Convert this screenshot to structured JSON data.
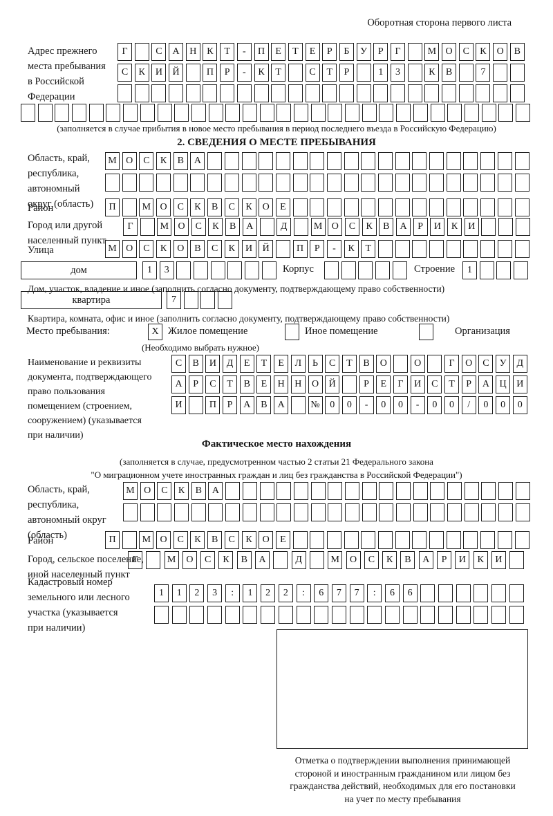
{
  "page": {
    "corner_note": "Оборотная сторона первого листа"
  },
  "prev_address": {
    "label": "Адрес прежнего\nместа пребывания\nв Российской\nФедерации",
    "row1": [
      "Г",
      "",
      "С",
      "А",
      "Н",
      "К",
      "Т",
      "-",
      "П",
      "Е",
      "Т",
      "Е",
      "Р",
      "Б",
      "У",
      "Р",
      "Г",
      "",
      "М",
      "О",
      "С",
      "К",
      "О",
      "В"
    ],
    "row2": [
      "С",
      "К",
      "И",
      "Й",
      "",
      "П",
      "Р",
      "-",
      "К",
      "Т",
      "",
      "С",
      "Т",
      "Р",
      "",
      "1",
      "3",
      "",
      "К",
      "В",
      "",
      "7",
      "",
      ""
    ],
    "row3": [
      "",
      "",
      "",
      "",
      "",
      "",
      "",
      "",
      "",
      "",
      "",
      "",
      "",
      "",
      "",
      "",
      "",
      "",
      "",
      "",
      "",
      "",
      "",
      ""
    ],
    "row4": [
      "",
      "",
      "",
      "",
      "",
      "",
      "",
      "",
      "",
      "",
      "",
      "",
      "",
      "",
      "",
      "",
      "",
      "",
      "",
      "",
      "",
      "",
      "",
      "",
      "",
      "",
      "",
      "",
      "",
      ""
    ],
    "note": "(заполняется в случае прибытия в новое место пребывания в период последнего въезда в Российскую Федерацию)"
  },
  "section2": {
    "heading": "2. СВЕДЕНИЯ О МЕСТЕ ПРЕБЫВАНИЯ",
    "oblast": {
      "label": "Область, край,\nреспублика,\nавтономный\nокруг (область)",
      "row1": [
        "М",
        "О",
        "С",
        "К",
        "В",
        "А",
        "",
        "",
        "",
        "",
        "",
        "",
        "",
        "",
        "",
        "",
        "",
        "",
        "",
        "",
        "",
        "",
        "",
        "",
        ""
      ],
      "row2": [
        "",
        "",
        "",
        "",
        "",
        "",
        "",
        "",
        "",
        "",
        "",
        "",
        "",
        "",
        "",
        "",
        "",
        "",
        "",
        "",
        "",
        "",
        "",
        "",
        ""
      ]
    },
    "raion": {
      "label": "Район",
      "row": [
        "П",
        "",
        "М",
        "О",
        "С",
        "К",
        "В",
        "С",
        "К",
        "О",
        "Е",
        "",
        "",
        "",
        "",
        "",
        "",
        "",
        "",
        "",
        "",
        "",
        "",
        "",
        ""
      ]
    },
    "gorod": {
      "label": "Город или другой\nнаселенный пункт",
      "row": [
        "Г",
        "",
        "М",
        "О",
        "С",
        "К",
        "В",
        "А",
        "",
        "Д",
        "",
        "М",
        "О",
        "С",
        "К",
        "В",
        "А",
        "Р",
        "И",
        "К",
        "И",
        "",
        "",
        ""
      ]
    },
    "ulitsa": {
      "label": "Улица",
      "row": [
        "М",
        "О",
        "С",
        "К",
        "О",
        "В",
        "С",
        "К",
        "И",
        "Й",
        "",
        "П",
        "Р",
        "-",
        "К",
        "Т",
        "",
        "",
        "",
        "",
        "",
        "",
        "",
        "",
        ""
      ]
    },
    "dom": {
      "field_label": "дом",
      "cells": [
        "1",
        "3",
        "",
        "",
        "",
        "",
        "",
        ""
      ],
      "korpus_label": "Корпус",
      "korpus_cells": [
        "",
        "",
        "",
        "",
        ""
      ],
      "stroenie_label": "Строение",
      "stroenie_cells": [
        "1",
        "",
        "",
        ""
      ],
      "note": "Дом, участок, владение и иное (заполнить согласно документу, подтверждающему право собственности)"
    },
    "kvartira": {
      "field_label": "квартира",
      "cells": [
        "7",
        "",
        "",
        ""
      ],
      "note": "Квартира, комната, офис и иное (заполнить согласно документу, подтверждающему право собственности)"
    },
    "mesto": {
      "label": "Место пребывания:",
      "mark": "X",
      "options": [
        "Жилое помещение",
        "Иное помещение",
        "Организация"
      ],
      "note": "(Необходимо выбрать нужное)"
    },
    "document": {
      "label": "Наименование и реквизиты\nдокумента, подтверждающего\nправо пользования\nпомещением (строением,\nсооружением) (указывается\nпри наличии)",
      "row1": [
        "С",
        "В",
        "И",
        "Д",
        "Е",
        "Т",
        "Е",
        "Л",
        "Ь",
        "С",
        "Т",
        "В",
        "О",
        "",
        "О",
        "",
        "Г",
        "О",
        "С",
        "У",
        "Д"
      ],
      "row2": [
        "А",
        "Р",
        "С",
        "Т",
        "В",
        "Е",
        "Н",
        "Н",
        "О",
        "Й",
        "",
        "Р",
        "Е",
        "Г",
        "И",
        "С",
        "Т",
        "Р",
        "А",
        "Ц",
        "И"
      ],
      "row3": [
        "И",
        "",
        "П",
        "Р",
        "А",
        "В",
        "А",
        "",
        "№",
        "0",
        "0",
        "-",
        "0",
        "0",
        "-",
        "0",
        "0",
        "/",
        "0",
        "0",
        "0"
      ]
    }
  },
  "factual": {
    "heading": "Фактическое место нахождения",
    "note": "(заполняется в случае, предусмотренном частью 2 статьи 21 Федерального закона\n\"О миграционном учете иностранных граждан и лиц без гражданства в Российской Федерации\")",
    "oblast": {
      "label": "Область, край,\nреспублика,\nавтономный округ\n(область)",
      "row1": [
        "М",
        "О",
        "С",
        "К",
        "В",
        "А",
        "",
        "",
        "",
        "",
        "",
        "",
        "",
        "",
        "",
        "",
        "",
        "",
        "",
        "",
        "",
        "",
        "",
        ""
      ],
      "row2": [
        "",
        "",
        "",
        "",
        "",
        "",
        "",
        "",
        "",
        "",
        "",
        "",
        "",
        "",
        "",
        "",
        "",
        "",
        "",
        "",
        "",
        "",
        "",
        ""
      ]
    },
    "raion": {
      "label": "Район",
      "row": [
        "П",
        "",
        "М",
        "О",
        "С",
        "К",
        "В",
        "С",
        "К",
        "О",
        "Е",
        "",
        "",
        "",
        "",
        "",
        "",
        "",
        "",
        "",
        "",
        "",
        "",
        "",
        ""
      ]
    },
    "gorod": {
      "label": "Город, сельское поселение,\nиной населенный пункт",
      "row": [
        "Г",
        "",
        "М",
        "О",
        "С",
        "К",
        "В",
        "А",
        "",
        "Д",
        "",
        "М",
        "О",
        "С",
        "К",
        "В",
        "А",
        "Р",
        "И",
        "К",
        "И",
        ""
      ]
    },
    "kadastr": {
      "label": "Кадастровый номер\nземельного или лесного\nучастка (указывается\nпри наличии)",
      "row1": [
        "1",
        "1",
        "2",
        "3",
        ":",
        "1",
        "2",
        "2",
        ":",
        "6",
        "7",
        "7",
        ":",
        "6",
        "6",
        "",
        "",
        "",
        "",
        "",
        ""
      ],
      "row2": [
        "",
        "",
        "",
        "",
        "",
        "",
        "",
        "",
        "",
        "",
        "",
        "",
        "",
        "",
        "",
        "",
        "",
        "",
        "",
        "",
        ""
      ]
    },
    "stamp_note": "Отметка о подтверждении выполнения принимающей\nстороной и иностранным гражданином или лицом без\nгражданства действий, необходимых для его постановки\nна учет по месту пребывания"
  }
}
